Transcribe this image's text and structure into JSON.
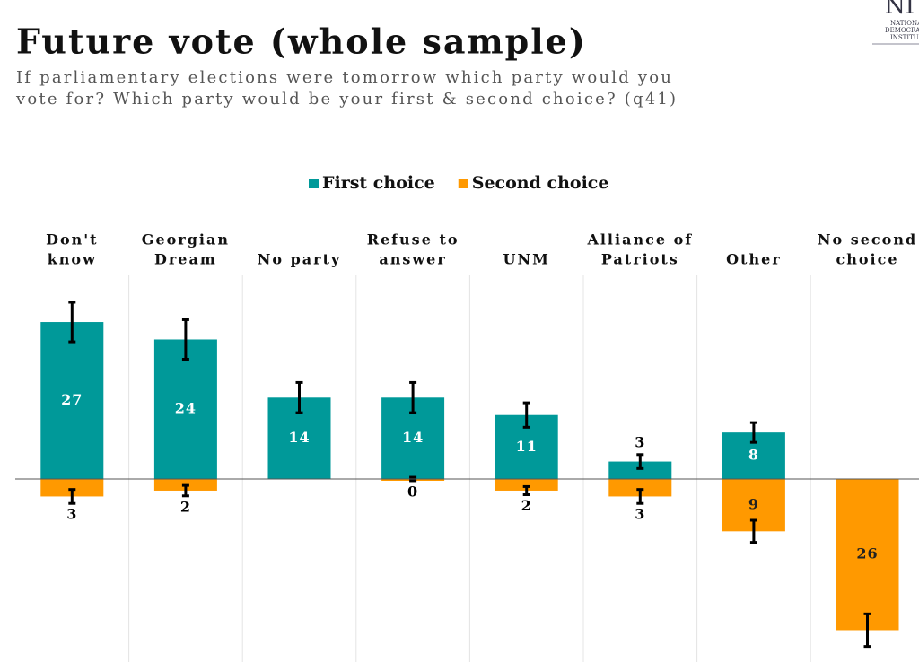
{
  "chart_data": {
    "type": "bar",
    "title": "Future vote (whole sample)",
    "subtitle": [
      "If parliamentary elections were tomorrow which party would you",
      "vote for? Which party would be your first & second choice? (q41)"
    ],
    "logo": [
      "NI",
      "NATIONA",
      "DEMOCRA",
      "INSTITU"
    ],
    "categories": [
      [
        "Don't",
        "know"
      ],
      [
        "Georgian",
        "Dream"
      ],
      [
        "No party"
      ],
      [
        "Refuse to",
        "answer"
      ],
      [
        "UNM"
      ],
      [
        "Alliance of",
        "Patriots"
      ],
      [
        "Other"
      ],
      [
        "No second",
        "choice"
      ]
    ],
    "series": [
      {
        "name": "First choice",
        "color": "#009999",
        "direction": "up",
        "values": [
          27,
          24,
          14,
          14,
          11,
          3,
          8,
          null
        ],
        "errors": [
          3.4,
          3.4,
          2.6,
          2.6,
          2.1,
          1.2,
          1.7,
          null
        ]
      },
      {
        "name": "Second choice",
        "color": "#ff9900",
        "direction": "down",
        "values": [
          3,
          2,
          null,
          0,
          2,
          3,
          9,
          26
        ],
        "errors": [
          1.2,
          0.9,
          null,
          0.3,
          0.7,
          1.2,
          1.9,
          2.8
        ]
      }
    ],
    "grid": true,
    "legend": "top"
  }
}
